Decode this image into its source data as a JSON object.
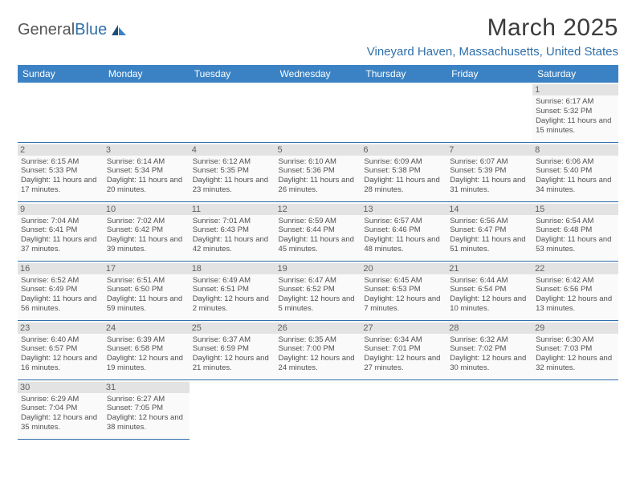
{
  "brand": {
    "part1": "General",
    "part2": "Blue"
  },
  "title": "March 2025",
  "location": "Vineyard Haven, Massachusetts, United States",
  "colors": {
    "header_bg": "#3b82c4",
    "header_text": "#ffffff",
    "accent": "#2f6fab",
    "daynum_bg": "#e3e3e3",
    "cell_bg": "#fafafa"
  },
  "weekdays": [
    "Sunday",
    "Monday",
    "Tuesday",
    "Wednesday",
    "Thursday",
    "Friday",
    "Saturday"
  ],
  "weeks": [
    [
      null,
      null,
      null,
      null,
      null,
      null,
      {
        "n": "1",
        "sr": "6:17 AM",
        "ss": "5:32 PM",
        "dl": "11 hours and 15 minutes."
      }
    ],
    [
      {
        "n": "2",
        "sr": "6:15 AM",
        "ss": "5:33 PM",
        "dl": "11 hours and 17 minutes."
      },
      {
        "n": "3",
        "sr": "6:14 AM",
        "ss": "5:34 PM",
        "dl": "11 hours and 20 minutes."
      },
      {
        "n": "4",
        "sr": "6:12 AM",
        "ss": "5:35 PM",
        "dl": "11 hours and 23 minutes."
      },
      {
        "n": "5",
        "sr": "6:10 AM",
        "ss": "5:36 PM",
        "dl": "11 hours and 26 minutes."
      },
      {
        "n": "6",
        "sr": "6:09 AM",
        "ss": "5:38 PM",
        "dl": "11 hours and 28 minutes."
      },
      {
        "n": "7",
        "sr": "6:07 AM",
        "ss": "5:39 PM",
        "dl": "11 hours and 31 minutes."
      },
      {
        "n": "8",
        "sr": "6:06 AM",
        "ss": "5:40 PM",
        "dl": "11 hours and 34 minutes."
      }
    ],
    [
      {
        "n": "9",
        "sr": "7:04 AM",
        "ss": "6:41 PM",
        "dl": "11 hours and 37 minutes."
      },
      {
        "n": "10",
        "sr": "7:02 AM",
        "ss": "6:42 PM",
        "dl": "11 hours and 39 minutes."
      },
      {
        "n": "11",
        "sr": "7:01 AM",
        "ss": "6:43 PM",
        "dl": "11 hours and 42 minutes."
      },
      {
        "n": "12",
        "sr": "6:59 AM",
        "ss": "6:44 PM",
        "dl": "11 hours and 45 minutes."
      },
      {
        "n": "13",
        "sr": "6:57 AM",
        "ss": "6:46 PM",
        "dl": "11 hours and 48 minutes."
      },
      {
        "n": "14",
        "sr": "6:56 AM",
        "ss": "6:47 PM",
        "dl": "11 hours and 51 minutes."
      },
      {
        "n": "15",
        "sr": "6:54 AM",
        "ss": "6:48 PM",
        "dl": "11 hours and 53 minutes."
      }
    ],
    [
      {
        "n": "16",
        "sr": "6:52 AM",
        "ss": "6:49 PM",
        "dl": "11 hours and 56 minutes."
      },
      {
        "n": "17",
        "sr": "6:51 AM",
        "ss": "6:50 PM",
        "dl": "11 hours and 59 minutes."
      },
      {
        "n": "18",
        "sr": "6:49 AM",
        "ss": "6:51 PM",
        "dl": "12 hours and 2 minutes."
      },
      {
        "n": "19",
        "sr": "6:47 AM",
        "ss": "6:52 PM",
        "dl": "12 hours and 5 minutes."
      },
      {
        "n": "20",
        "sr": "6:45 AM",
        "ss": "6:53 PM",
        "dl": "12 hours and 7 minutes."
      },
      {
        "n": "21",
        "sr": "6:44 AM",
        "ss": "6:54 PM",
        "dl": "12 hours and 10 minutes."
      },
      {
        "n": "22",
        "sr": "6:42 AM",
        "ss": "6:56 PM",
        "dl": "12 hours and 13 minutes."
      }
    ],
    [
      {
        "n": "23",
        "sr": "6:40 AM",
        "ss": "6:57 PM",
        "dl": "12 hours and 16 minutes."
      },
      {
        "n": "24",
        "sr": "6:39 AM",
        "ss": "6:58 PM",
        "dl": "12 hours and 19 minutes."
      },
      {
        "n": "25",
        "sr": "6:37 AM",
        "ss": "6:59 PM",
        "dl": "12 hours and 21 minutes."
      },
      {
        "n": "26",
        "sr": "6:35 AM",
        "ss": "7:00 PM",
        "dl": "12 hours and 24 minutes."
      },
      {
        "n": "27",
        "sr": "6:34 AM",
        "ss": "7:01 PM",
        "dl": "12 hours and 27 minutes."
      },
      {
        "n": "28",
        "sr": "6:32 AM",
        "ss": "7:02 PM",
        "dl": "12 hours and 30 minutes."
      },
      {
        "n": "29",
        "sr": "6:30 AM",
        "ss": "7:03 PM",
        "dl": "12 hours and 32 minutes."
      }
    ],
    [
      {
        "n": "30",
        "sr": "6:29 AM",
        "ss": "7:04 PM",
        "dl": "12 hours and 35 minutes."
      },
      {
        "n": "31",
        "sr": "6:27 AM",
        "ss": "7:05 PM",
        "dl": "12 hours and 38 minutes."
      },
      null,
      null,
      null,
      null,
      null
    ]
  ],
  "labels": {
    "sunrise": "Sunrise:",
    "sunset": "Sunset:",
    "daylight": "Daylight:"
  }
}
